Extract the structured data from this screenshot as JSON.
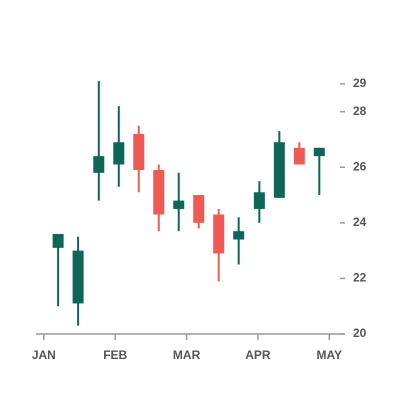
{
  "chart_data": {
    "type": "candlestick",
    "up_color": "#0d6658",
    "down_color": "#ef5b54",
    "xlim": [
      -0.11,
      4.22
    ],
    "xticks": [
      {
        "value": 0,
        "label": "JAN"
      },
      {
        "value": 1,
        "label": "FEB"
      },
      {
        "value": 2,
        "label": "MAR"
      },
      {
        "value": 3,
        "label": "APR"
      },
      {
        "value": 4,
        "label": "MAY"
      }
    ],
    "ylim": [
      20,
      29.5
    ],
    "yticks": [
      20,
      22,
      24,
      26,
      28,
      29
    ],
    "x": [
      0.2,
      0.48,
      0.77,
      1.05,
      1.33,
      1.61,
      1.89,
      2.17,
      2.45,
      2.73,
      3.02,
      3.3,
      3.58,
      3.86
    ],
    "open": [
      23.1,
      21.1,
      25.8,
      26.1,
      27.2,
      25.9,
      24.5,
      25.0,
      24.3,
      23.4,
      24.5,
      24.9,
      26.7,
      26.4
    ],
    "high": [
      23.6,
      23.5,
      29.1,
      28.2,
      27.5,
      26.1,
      25.8,
      25.0,
      24.5,
      24.2,
      25.5,
      27.3,
      26.9,
      26.7
    ],
    "low": [
      21.0,
      20.3,
      24.8,
      25.3,
      25.1,
      23.7,
      23.7,
      23.8,
      21.9,
      22.5,
      24.0,
      24.9,
      26.1,
      25.0
    ],
    "close": [
      23.6,
      23.0,
      26.4,
      26.9,
      25.9,
      24.3,
      24.8,
      24.0,
      22.9,
      23.7,
      25.1,
      26.9,
      26.1,
      26.7
    ]
  }
}
